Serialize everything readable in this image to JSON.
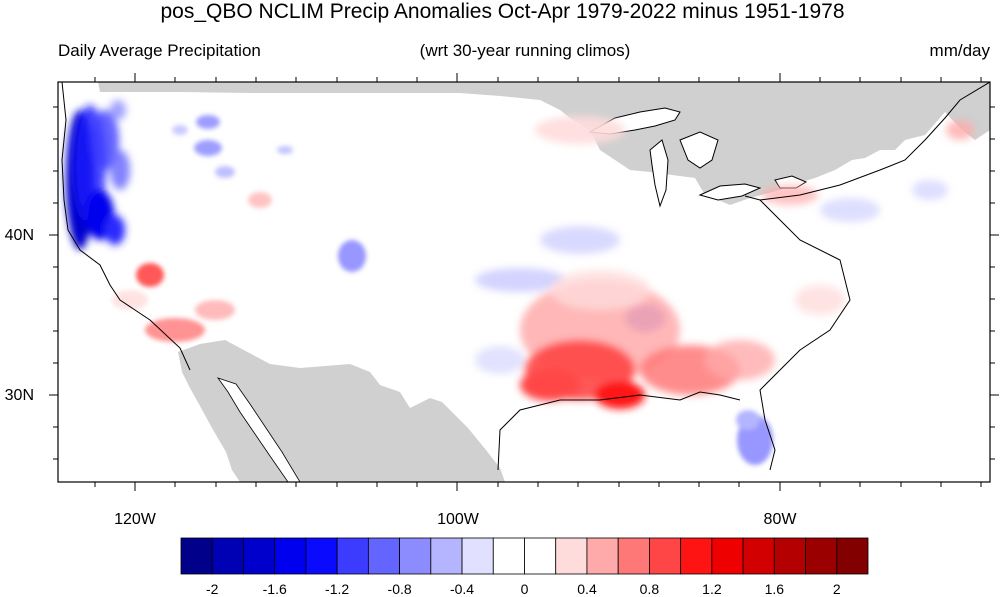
{
  "title": "pos_QBO NCLIM Precip Anomalies Oct-Apr 1979-2022 minus 1951-1978",
  "left_subtitle": "Daily Average Precipitation",
  "center_subtitle": "(wrt 30-year running climos)",
  "units": "mm/day",
  "map": {
    "lon_labels": [
      "120W",
      "100W",
      "80W"
    ],
    "lat_labels": [
      "40N",
      "30N"
    ]
  },
  "colorbar": {
    "labels": [
      "-2",
      "-1.6",
      "-1.2",
      "-0.8",
      "-0.4",
      "0",
      "0.4",
      "0.8",
      "1.2",
      "1.6",
      "2"
    ],
    "colors": [
      "#00008b",
      "#0000b4",
      "#0000cd",
      "#0000ee",
      "#0a0aff",
      "#3c3cff",
      "#6464ff",
      "#8c8cff",
      "#b4b4ff",
      "#e1e1ff",
      "#ffffff",
      "#ffffff",
      "#ffdcdc",
      "#ffaaaa",
      "#ff7878",
      "#ff4646",
      "#ff1414",
      "#ee0000",
      "#d20000",
      "#b40000",
      "#9b0000",
      "#820000"
    ]
  }
}
